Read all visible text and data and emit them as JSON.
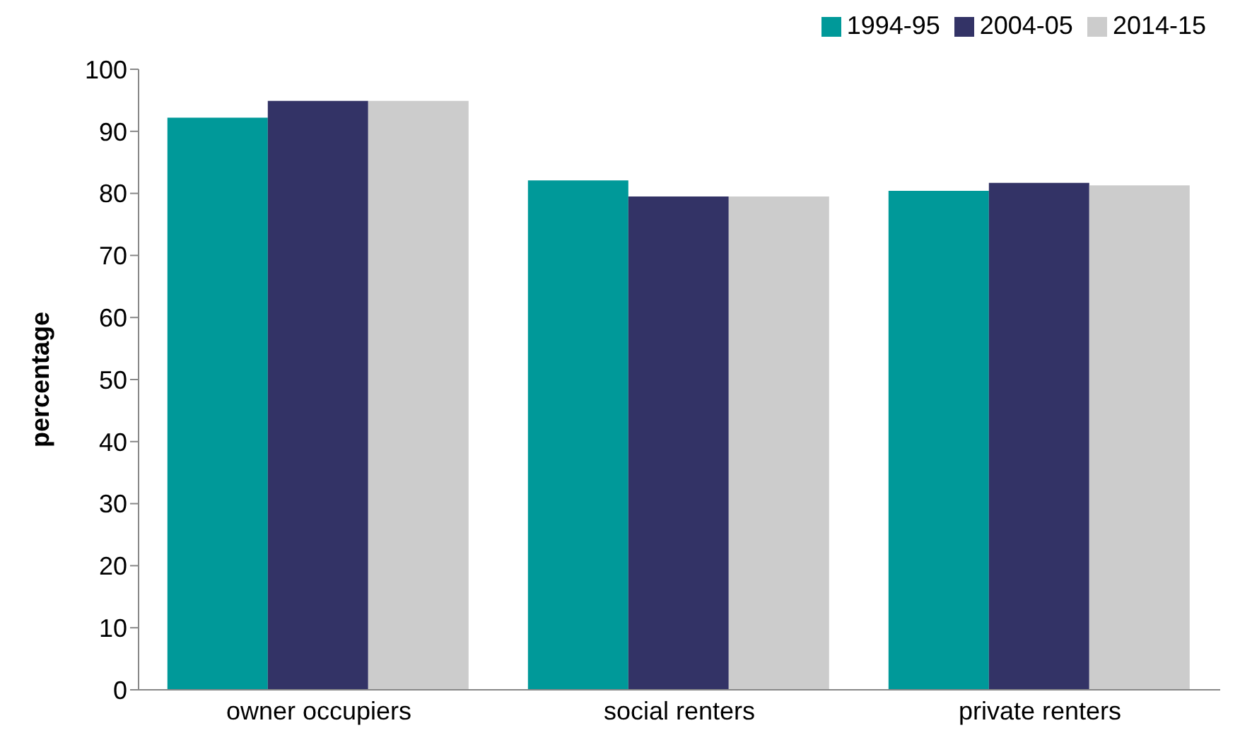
{
  "chart_data": {
    "type": "bar",
    "ylabel": "percentage",
    "categories": [
      "owner occupiers",
      "social renters",
      "private renters"
    ],
    "series": [
      {
        "name": "1994-95",
        "color": "#009999",
        "values": [
          92.2,
          82.1,
          80.4
        ]
      },
      {
        "name": "2004-05",
        "color": "#333366",
        "values": [
          94.9,
          79.5,
          81.7
        ]
      },
      {
        "name": "2014-15",
        "color": "#cccccc",
        "values": [
          94.9,
          79.5,
          81.3
        ]
      }
    ],
    "ylim": [
      0,
      100
    ],
    "yticks": [
      0,
      10,
      20,
      30,
      40,
      50,
      60,
      70,
      80,
      90,
      100
    ],
    "grid": false,
    "legend": "top right"
  }
}
